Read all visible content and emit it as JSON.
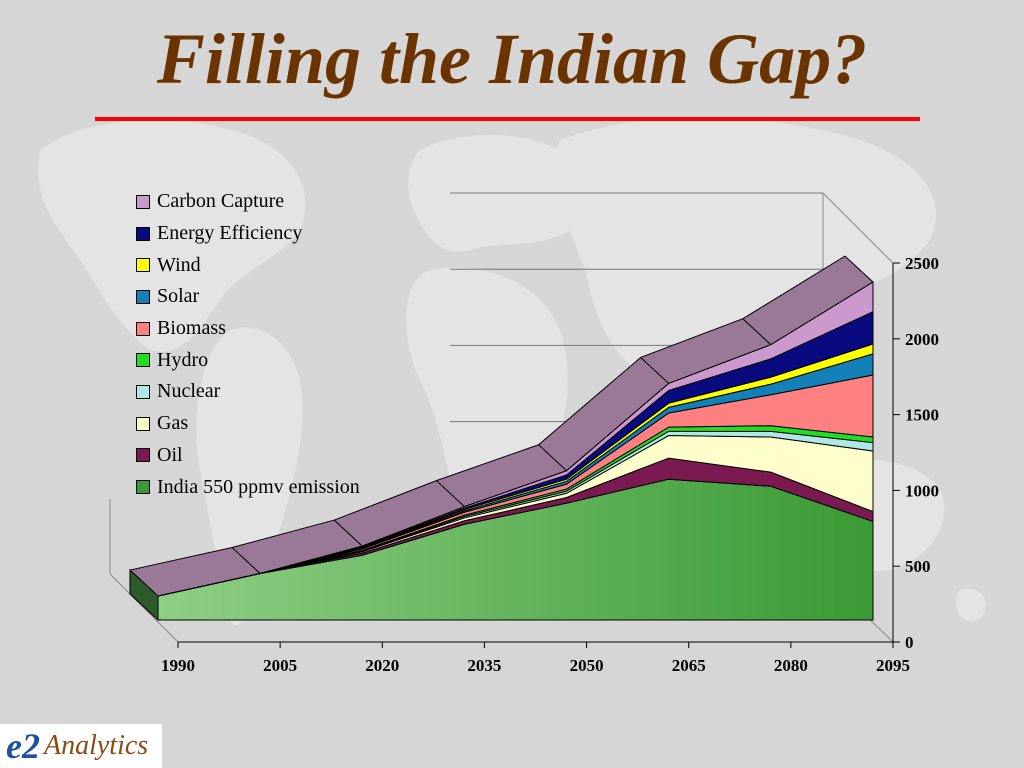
{
  "slide": {
    "title": "Filling the Indian Gap?",
    "rule_color": "#ff0000",
    "title_color": "#6b3300"
  },
  "logo": {
    "mark": "e2",
    "text": "Analytics"
  },
  "chart_data": {
    "type": "area",
    "stacked": true,
    "three_d": true,
    "title": "",
    "xlabel": "",
    "ylabel": "",
    "x": [
      1990,
      2005,
      2020,
      2035,
      2050,
      2065,
      2080,
      2095
    ],
    "x_ticks": [
      "1990",
      "2005",
      "2020",
      "2035",
      "2050",
      "2065",
      "2080",
      "2095"
    ],
    "ylim": [
      0,
      2500
    ],
    "y_ticks": [
      "0",
      "500",
      "1000",
      "1500",
      "2000",
      "2500"
    ],
    "grid": true,
    "legend_position": "top-left",
    "series": [
      {
        "name": "India 550 ppmv emission",
        "color": "#3a9a35",
        "values": [
          170,
          330,
          460,
          680,
          830,
          1000,
          950,
          700
        ]
      },
      {
        "name": "Oil",
        "color": "#7b1a50",
        "values": [
          0,
          0,
          15,
          25,
          40,
          150,
          100,
          70
        ]
      },
      {
        "name": "Gas",
        "color": "#ffffcc",
        "values": [
          0,
          0,
          10,
          20,
          30,
          160,
          250,
          430
        ]
      },
      {
        "name": "Nuclear",
        "color": "#b0e8e8",
        "values": [
          0,
          0,
          5,
          10,
          15,
          30,
          40,
          60
        ]
      },
      {
        "name": "Hydro",
        "color": "#22dd22",
        "values": [
          0,
          0,
          5,
          10,
          15,
          30,
          40,
          40
        ]
      },
      {
        "name": "Biomass",
        "color": "#ff8080",
        "values": [
          0,
          0,
          10,
          20,
          35,
          100,
          220,
          440
        ]
      },
      {
        "name": "Solar",
        "color": "#1480b8",
        "values": [
          0,
          0,
          5,
          10,
          20,
          40,
          75,
          150
        ]
      },
      {
        "name": "Wind",
        "color": "#ffff00",
        "values": [
          0,
          0,
          5,
          10,
          15,
          30,
          50,
          70
        ]
      },
      {
        "name": "Energy Efficiency",
        "color": "#0a0a80",
        "values": [
          0,
          0,
          5,
          10,
          30,
          90,
          130,
          230
        ]
      },
      {
        "name": "Carbon Capture",
        "color": "#cc99cc",
        "values": [
          0,
          0,
          5,
          10,
          30,
          50,
          100,
          210
        ]
      }
    ],
    "legend_order": [
      "Carbon Capture",
      "Energy Efficiency",
      "Wind",
      "Solar",
      "Biomass",
      "Hydro",
      "Nuclear",
      "Gas",
      "Oil",
      "India 550 ppmv emission"
    ],
    "top_band_color": "#9a7898"
  }
}
